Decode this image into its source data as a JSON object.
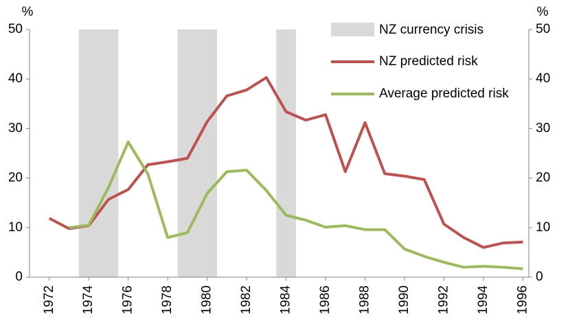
{
  "chart_data": {
    "type": "line",
    "y_unit_left": "%",
    "y_unit_right": "%",
    "x": [
      1972,
      1973,
      1974,
      1975,
      1976,
      1977,
      1978,
      1979,
      1980,
      1981,
      1982,
      1983,
      1984,
      1985,
      1986,
      1987,
      1988,
      1989,
      1990,
      1991,
      1992,
      1993,
      1994,
      1995,
      1996
    ],
    "series": [
      {
        "name": "NZ predicted risk",
        "color": "#c0504d",
        "values": [
          11.9,
          9.8,
          10.4,
          15.7,
          17.7,
          22.7,
          23.3,
          24.0,
          31.4,
          36.6,
          37.8,
          40.3,
          33.4,
          31.7,
          32.8,
          21.3,
          31.2,
          20.9,
          20.4,
          19.7,
          10.7,
          8.0,
          6.0,
          6.9,
          7.1
        ]
      },
      {
        "name": "Average predicted risk",
        "color": "#9bbb59",
        "values": [
          null,
          10.0,
          10.5,
          18.1,
          27.3,
          20.8,
          8.0,
          9.0,
          16.9,
          21.3,
          21.6,
          17.5,
          12.5,
          11.5,
          10.1,
          10.4,
          9.6,
          9.6,
          5.7,
          4.2,
          3.0,
          2.0,
          2.2,
          2.0,
          1.7
        ]
      }
    ],
    "shaded": {
      "name": "NZ currency crisis",
      "color": "#d9d9d9",
      "periods": [
        [
          1973.5,
          1975.5
        ],
        [
          1978.5,
          1980.5
        ],
        [
          1983.5,
          1984.5
        ]
      ]
    },
    "xlim": [
      1971,
      1996.3
    ],
    "xticks": [
      1972,
      1974,
      1976,
      1978,
      1980,
      1982,
      1984,
      1986,
      1988,
      1990,
      1992,
      1994,
      1996
    ],
    "ylim": [
      0,
      50
    ],
    "yticks": [
      0,
      10,
      20,
      30,
      40,
      50
    ],
    "y2lim": [
      0,
      50
    ],
    "y2ticks": [
      0,
      10,
      20,
      30,
      40,
      50
    ]
  }
}
